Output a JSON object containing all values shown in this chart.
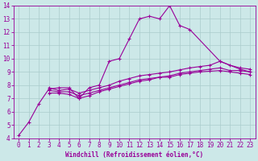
{
  "background_color": "#cce8e8",
  "grid_color": "#aacccc",
  "line_color": "#990099",
  "xlabel": "Windchill (Refroidissement éolien,°C)",
  "xlim": [
    -0.5,
    23.5
  ],
  "ylim": [
    4,
    14
  ],
  "xticks": [
    0,
    1,
    2,
    3,
    4,
    5,
    6,
    7,
    8,
    9,
    10,
    11,
    12,
    13,
    14,
    15,
    16,
    17,
    18,
    19,
    20,
    21,
    22,
    23
  ],
  "yticks": [
    4,
    5,
    6,
    7,
    8,
    9,
    10,
    11,
    12,
    13,
    14
  ],
  "lines": [
    {
      "x": [
        0,
        1,
        2,
        3,
        4,
        5,
        6,
        7,
        8,
        9,
        10,
        11,
        12,
        13,
        14,
        15,
        16,
        17,
        20,
        22,
        23
      ],
      "y": [
        4.2,
        5.2,
        6.6,
        7.7,
        7.8,
        7.8,
        7.0,
        7.8,
        8.0,
        9.8,
        10.0,
        11.5,
        13.0,
        13.2,
        13.0,
        14.0,
        12.5,
        12.2,
        9.8,
        9.2,
        9.0
      ]
    },
    {
      "x": [
        3,
        4,
        5,
        6,
        7,
        8,
        9,
        10,
        11,
        12,
        13,
        14,
        15,
        16,
        17,
        18,
        19,
        20,
        21,
        22,
        23
      ],
      "y": [
        7.8,
        7.6,
        7.7,
        7.4,
        7.6,
        7.8,
        8.0,
        8.3,
        8.5,
        8.7,
        8.8,
        8.9,
        9.0,
        9.15,
        9.3,
        9.4,
        9.5,
        9.8,
        9.5,
        9.3,
        9.2
      ]
    },
    {
      "x": [
        3,
        4,
        5,
        6,
        7,
        8,
        9,
        10,
        11,
        12,
        13,
        14,
        15,
        16,
        17,
        18,
        19,
        20,
        21,
        22,
        23
      ],
      "y": [
        7.6,
        7.5,
        7.5,
        7.2,
        7.4,
        7.6,
        7.8,
        8.0,
        8.2,
        8.4,
        8.5,
        8.6,
        8.7,
        8.9,
        9.0,
        9.1,
        9.2,
        9.3,
        9.1,
        9.1,
        9.0
      ]
    },
    {
      "x": [
        3,
        4,
        5,
        6,
        7,
        8,
        9,
        10,
        11,
        12,
        13,
        14,
        15,
        16,
        17,
        18,
        19,
        20,
        21,
        22,
        23
      ],
      "y": [
        7.4,
        7.4,
        7.3,
        7.0,
        7.2,
        7.5,
        7.7,
        7.9,
        8.1,
        8.3,
        8.4,
        8.6,
        8.6,
        8.8,
        8.9,
        9.0,
        9.05,
        9.1,
        9.0,
        8.9,
        8.8
      ]
    }
  ]
}
